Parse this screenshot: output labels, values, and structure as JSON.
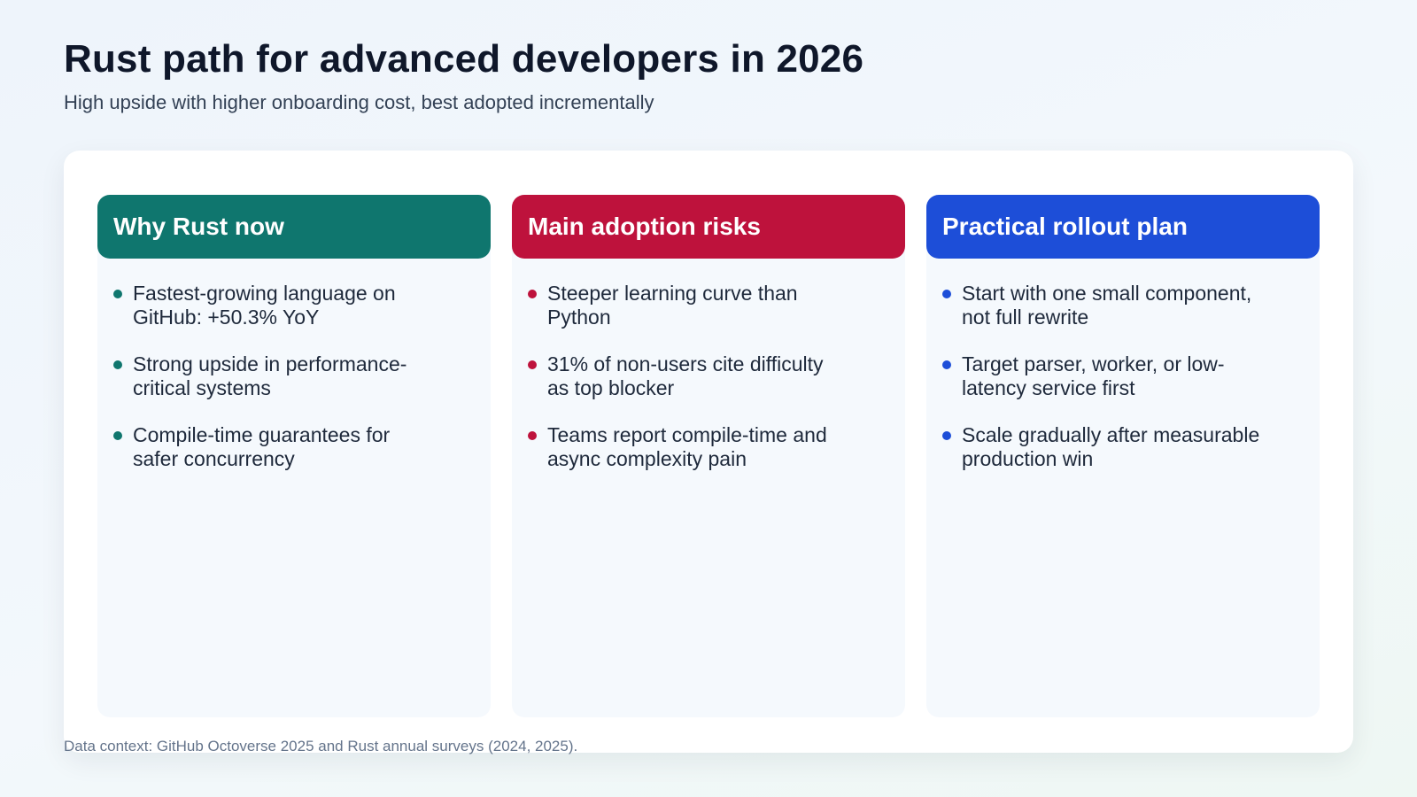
{
  "slide": {
    "title": "Rust path for advanced developers in 2026",
    "subtitle": "High upside with higher onboarding cost, best adopted incrementally",
    "footnote": "Data context: GitHub Octoverse 2025 and Rust annual surveys (2024, 2025)."
  },
  "columns": [
    {
      "heading": "Why Rust now",
      "color": "#0f766e",
      "bullets": [
        "Fastest-growing language on GitHub: +50.3% YoY",
        "Strong upside in performance-critical systems",
        "Compile-time guarantees for safer concurrency"
      ]
    },
    {
      "heading": "Main adoption risks",
      "color": "#be123c",
      "bullets": [
        "Steeper learning curve than Python",
        "31% of non-users cite difficulty as top blocker",
        "Teams report compile-time and async complexity pain"
      ]
    },
    {
      "heading": "Practical rollout plan",
      "color": "#1d4ed8",
      "bullets": [
        "Start with one small component, not full rewrite",
        "Target parser, worker, or low-latency service first",
        "Scale gradually after measurable production win"
      ]
    }
  ]
}
